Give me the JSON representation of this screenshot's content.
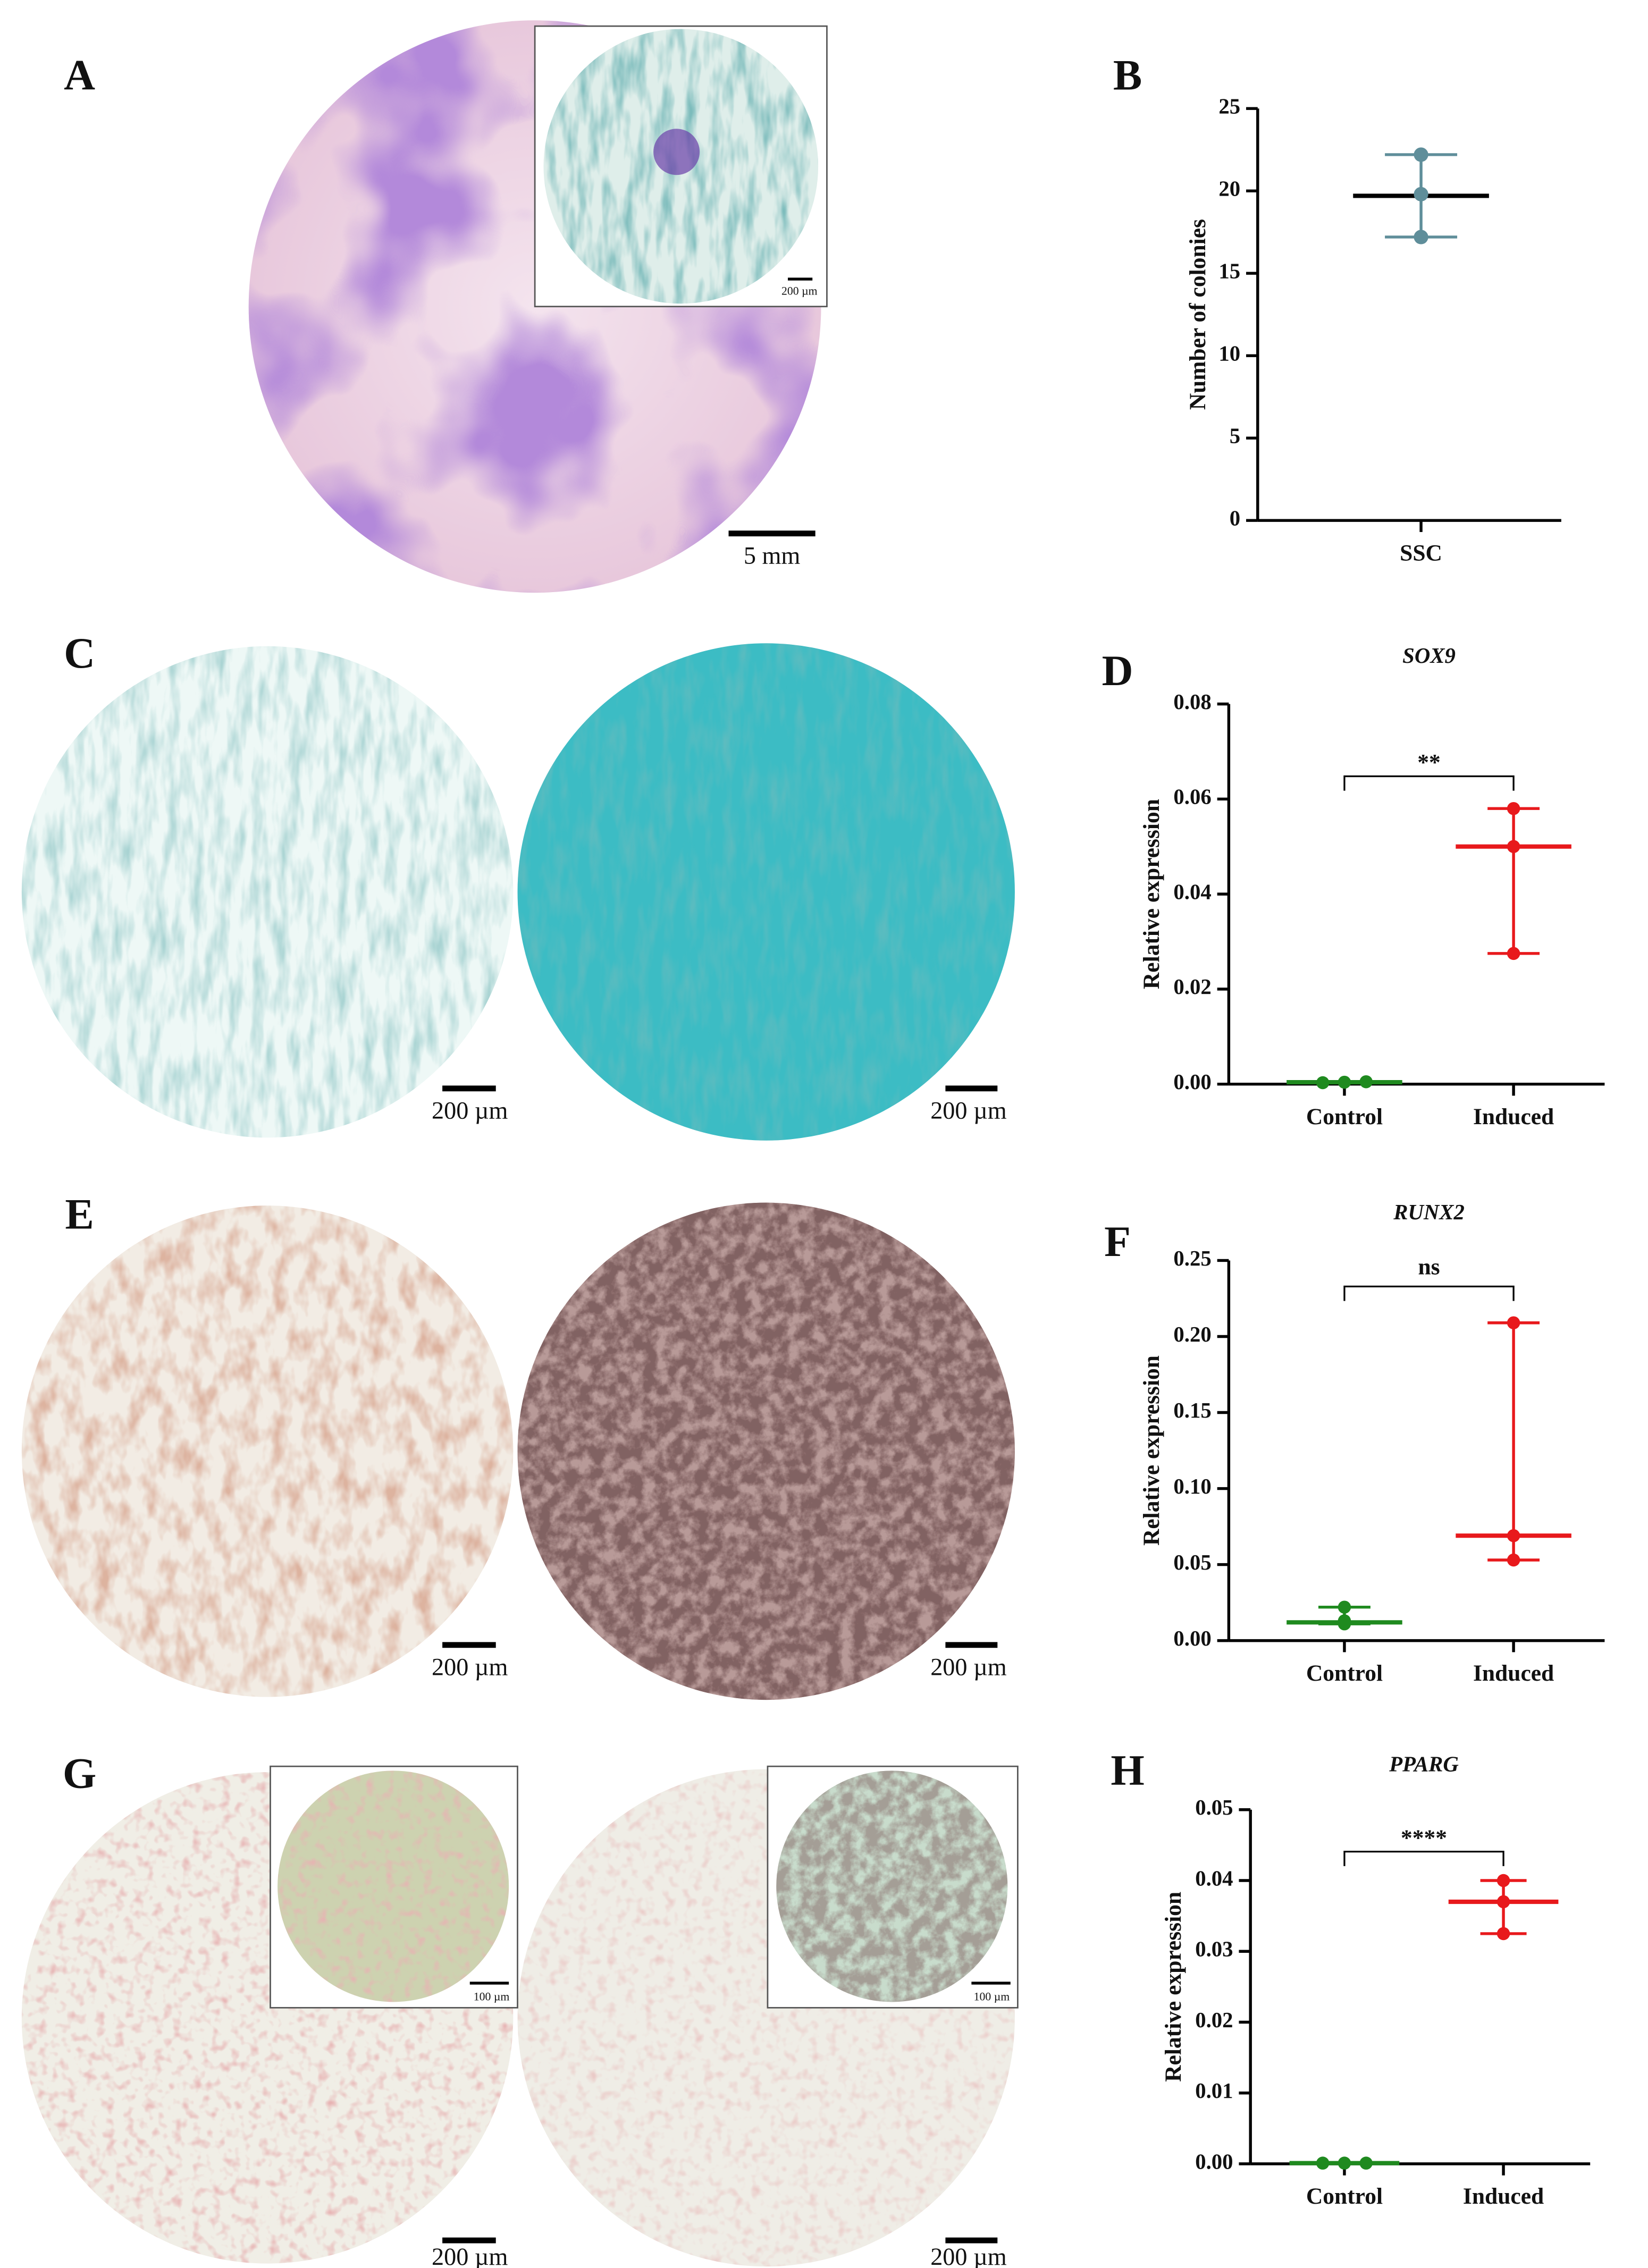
{
  "panels": [
    {
      "letter": "A",
      "scale_labels": [
        "5 mm",
        "200 µm"
      ]
    },
    {
      "letter": "C",
      "scale_labels": [
        "200 µm",
        "200 µm"
      ]
    },
    {
      "letter": "E",
      "scale_labels": [
        "200 µm",
        "200 µm"
      ]
    },
    {
      "letter": "G",
      "scale_labels": [
        "200 µm",
        "200 µm",
        "100 µm",
        "100 µm"
      ]
    }
  ],
  "chart_data": [
    {
      "type": "scatter",
      "letter": "B",
      "ylabel": "Number of colonies",
      "categories": [
        "SSC"
      ],
      "colors": [
        "#5f8e9a"
      ],
      "points": [
        [
          22.2,
          19.8,
          17.2
        ]
      ],
      "center": [
        19.7
      ],
      "ylim": [
        0,
        25
      ],
      "yticks": [
        0,
        5,
        10,
        15,
        20,
        25
      ]
    },
    {
      "type": "scatter",
      "letter": "D",
      "title": "SOX9",
      "ylabel": "Relative expression",
      "categories": [
        "Control",
        "Induced"
      ],
      "colors": [
        "#1f8a1f",
        "#e8191c"
      ],
      "points": [
        [
          0.0003,
          0.0004,
          0.0005
        ],
        [
          0.058,
          0.05,
          0.0275
        ]
      ],
      "center": [
        0.0004,
        0.05
      ],
      "annotation": "**",
      "ylim": [
        0,
        0.08
      ],
      "yticks": [
        {
          "value": 0,
          "label": "0.00"
        },
        {
          "value": 0.02,
          "label": "0.02"
        },
        {
          "value": 0.04,
          "label": "0.04"
        },
        {
          "value": 0.06,
          "label": "0.06"
        },
        {
          "value": 0.08,
          "label": "0.08"
        }
      ]
    },
    {
      "type": "scatter",
      "letter": "F",
      "title": "RUNX2",
      "ylabel": "Relative expression",
      "categories": [
        "Control",
        "Induced"
      ],
      "colors": [
        "#1f8a1f",
        "#e8191c"
      ],
      "points": [
        [
          0.022,
          0.011,
          0.013
        ],
        [
          0.209,
          0.069,
          0.053
        ]
      ],
      "center": [
        0.012,
        0.069
      ],
      "annotation": "ns",
      "ylim": [
        0,
        0.25
      ],
      "yticks": [
        {
          "value": 0,
          "label": "0.00"
        },
        {
          "value": 0.05,
          "label": "0.05"
        },
        {
          "value": 0.1,
          "label": "0.10"
        },
        {
          "value": 0.15,
          "label": "0.15"
        },
        {
          "value": 0.2,
          "label": "0.20"
        },
        {
          "value": 0.25,
          "label": "0.25"
        }
      ]
    },
    {
      "type": "scatter",
      "letter": "H",
      "title": "PPARG",
      "ylabel": "Relative expression",
      "categories": [
        "Control",
        "Induced"
      ],
      "colors": [
        "#1f8a1f",
        "#e8191c"
      ],
      "points": [
        [
          0.0001,
          0.0001,
          0.0001
        ],
        [
          0.04,
          0.037,
          0.0325
        ]
      ],
      "center": [
        0.0001,
        0.037
      ],
      "annotation": "****",
      "ylim": [
        0,
        0.05
      ],
      "yticks": [
        {
          "value": 0,
          "label": "0.00"
        },
        {
          "value": 0.01,
          "label": "0.01"
        },
        {
          "value": 0.02,
          "label": "0.02"
        },
        {
          "value": 0.03,
          "label": "0.03"
        },
        {
          "value": 0.04,
          "label": "0.04"
        },
        {
          "value": 0.05,
          "label": "0.05"
        }
      ]
    }
  ]
}
